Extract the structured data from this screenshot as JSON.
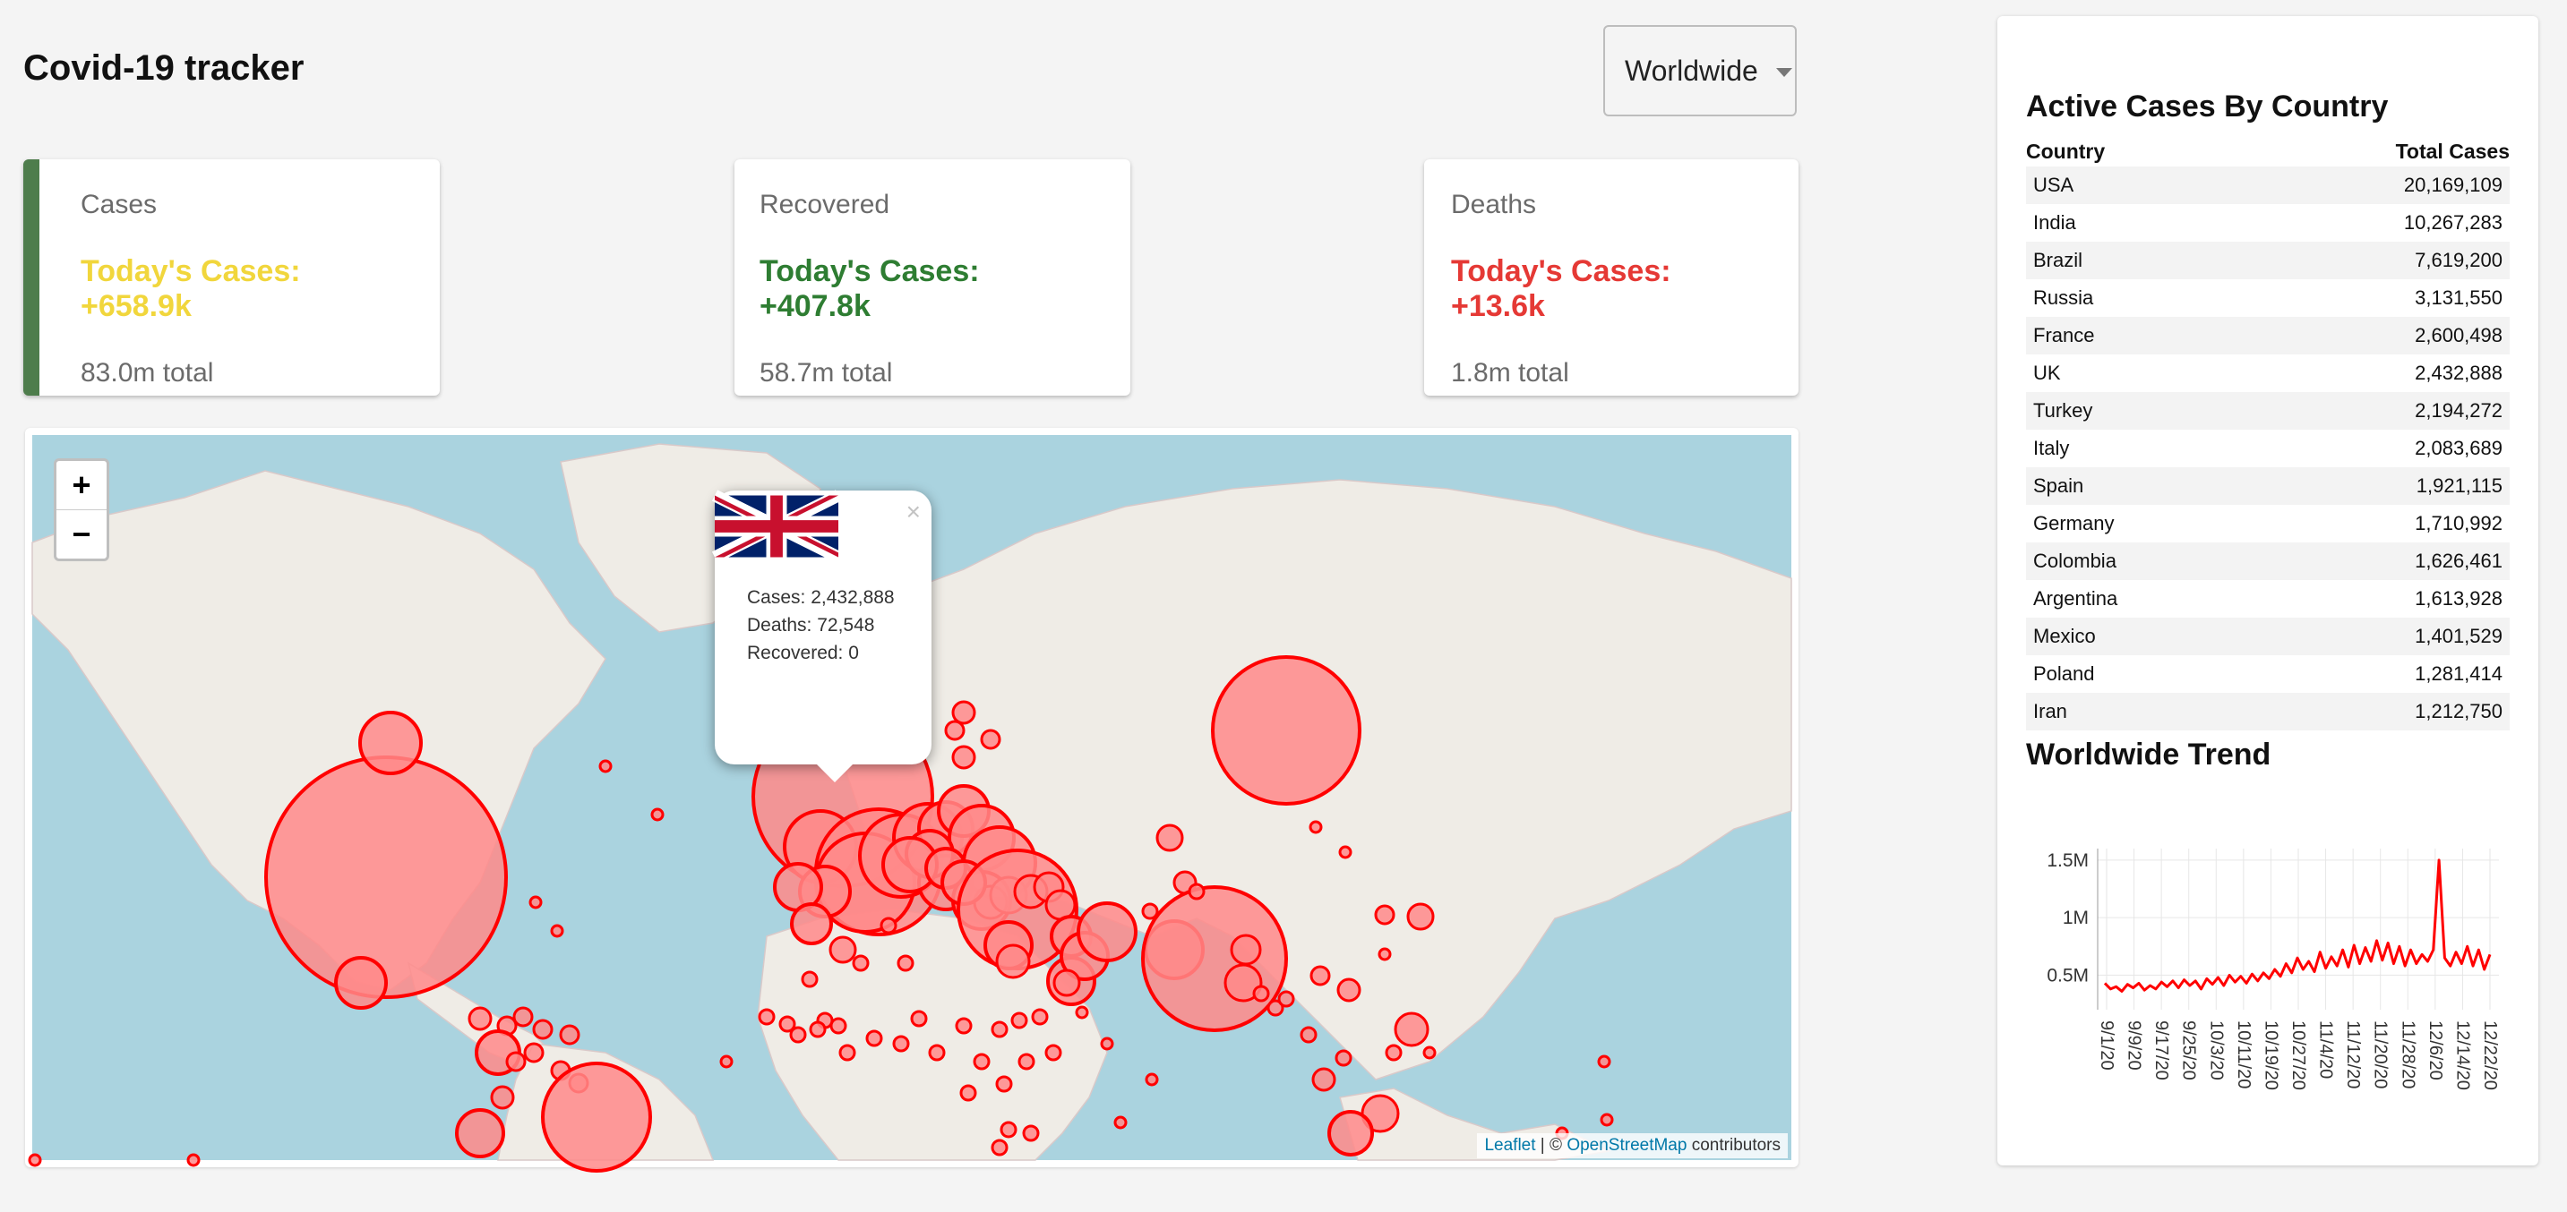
{
  "header": {
    "title": "Covid-19 tracker",
    "region_selected": "Worldwide"
  },
  "cards": {
    "cases": {
      "title": "Cases",
      "today": "Today's Cases: +658.9k",
      "total": "83.0m total",
      "color": "#f1d63c"
    },
    "recovered": {
      "title": "Recovered",
      "today": "Today's Cases: +407.8k",
      "total": "58.7m total",
      "color": "#2e7d32"
    },
    "deaths": {
      "title": "Deaths",
      "today": "Today's Cases: +13.6k",
      "total": "1.8m total",
      "color": "#e53935"
    }
  },
  "map": {
    "zoom_in": "+",
    "zoom_out": "−",
    "attribution": {
      "leaflet": "Leaflet",
      "sep": " | © ",
      "osm": "OpenStreetMap",
      "rest": " contributors"
    },
    "popup": {
      "close": "×",
      "country": "UK",
      "flag_icon": "uk-flag-icon",
      "cases": "Cases: 2,432,888",
      "deaths": "Deaths: 72,548",
      "recovered": "Recovered: 0"
    },
    "circle_color": "#ff0000",
    "circle_fill": "#ff8a8a"
  },
  "sidebar": {
    "table_title": "Active Cases By Country",
    "col_country": "Country",
    "col_cases": "Total Cases",
    "rows": [
      {
        "country": "USA",
        "cases": "20,169,109"
      },
      {
        "country": "India",
        "cases": "10,267,283"
      },
      {
        "country": "Brazil",
        "cases": "7,619,200"
      },
      {
        "country": "Russia",
        "cases": "3,131,550"
      },
      {
        "country": "France",
        "cases": "2,600,498"
      },
      {
        "country": "UK",
        "cases": "2,432,888"
      },
      {
        "country": "Turkey",
        "cases": "2,194,272"
      },
      {
        "country": "Italy",
        "cases": "2,083,689"
      },
      {
        "country": "Spain",
        "cases": "1,921,115"
      },
      {
        "country": "Germany",
        "cases": "1,710,992"
      },
      {
        "country": "Colombia",
        "cases": "1,626,461"
      },
      {
        "country": "Argentina",
        "cases": "1,613,928"
      },
      {
        "country": "Mexico",
        "cases": "1,401,529"
      },
      {
        "country": "Poland",
        "cases": "1,281,414"
      },
      {
        "country": "Iran",
        "cases": "1,212,750"
      }
    ],
    "trend_title": "Worldwide Trend"
  },
  "chart_data": {
    "type": "line",
    "title": "",
    "xlabel": "",
    "ylabel": "",
    "ylim": [
      0.2,
      1.6
    ],
    "y_ticks": [
      {
        "value": 1.5,
        "label": "1.5M"
      },
      {
        "value": 1.0,
        "label": "1M"
      },
      {
        "value": 0.5,
        "label": "0.5M"
      }
    ],
    "x_tick_labels": [
      "9/1/20",
      "9/9/20",
      "9/17/20",
      "9/25/20",
      "10/3/20",
      "10/11/20",
      "10/19/20",
      "10/27/20",
      "11/4/20",
      "11/12/20",
      "11/20/20",
      "11/28/20",
      "12/6/20",
      "12/14/20",
      "12/22/20"
    ],
    "line_color": "#ff0000",
    "series": [
      {
        "values": [
          0.43,
          0.38,
          0.4,
          0.36,
          0.42,
          0.39,
          0.43,
          0.37,
          0.41,
          0.38,
          0.44,
          0.4,
          0.45,
          0.39,
          0.46,
          0.41,
          0.45,
          0.38,
          0.47,
          0.42,
          0.48,
          0.41,
          0.5,
          0.44,
          0.49,
          0.43,
          0.51,
          0.45,
          0.52,
          0.47,
          0.55,
          0.49,
          0.6,
          0.52,
          0.65,
          0.55,
          0.62,
          0.53,
          0.7,
          0.56,
          0.66,
          0.58,
          0.72,
          0.57,
          0.76,
          0.6,
          0.74,
          0.62,
          0.8,
          0.63,
          0.78,
          0.6,
          0.75,
          0.58,
          0.72,
          0.6,
          0.68,
          0.62,
          0.72,
          1.5,
          0.65,
          0.58,
          0.7,
          0.6,
          0.75,
          0.58,
          0.72,
          0.55,
          0.68
        ]
      }
    ]
  }
}
